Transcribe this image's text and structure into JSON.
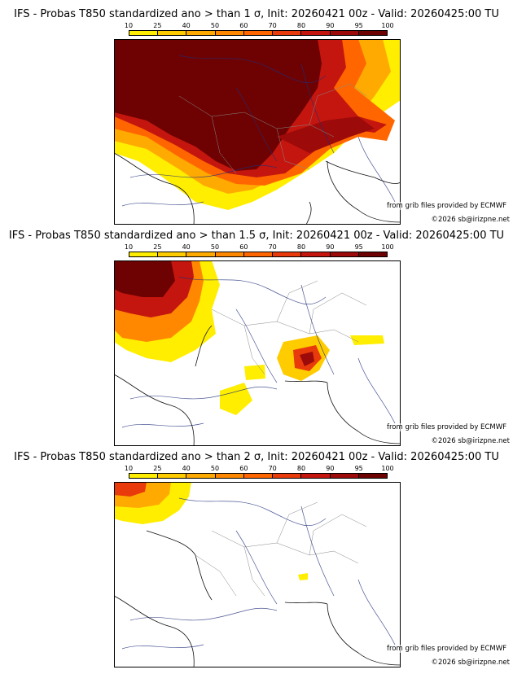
{
  "scale": {
    "ticks": [
      "10",
      "25",
      "40",
      "50",
      "60",
      "70",
      "80",
      "90",
      "95",
      "100"
    ],
    "colors": [
      "#ffee00",
      "#ffcc00",
      "#ffaa00",
      "#ff8800",
      "#ff6600",
      "#e83a0a",
      "#c4160e",
      "#9c0a0a",
      "#6e0202"
    ]
  },
  "credits": {
    "source": "from grib files provided by ECMWF",
    "copyright": "©2026 sb@irizpne.net"
  },
  "panels": [
    {
      "title": "IFS - Probas T850  standardized ano > than 1 σ, Init: 20260421 00z - Valid: 20260425:00 TU",
      "sigma": 1
    },
    {
      "title": "IFS - Probas T850  standardized ano > than 1.5 σ, Init: 20260421 00z - Valid: 20260425:00 TU",
      "sigma": 1.5
    },
    {
      "title": "IFS - Probas T850  standardized ano > than 2 σ, Init: 20260421 00z - Valid: 20260425:00 TU",
      "sigma": 2
    }
  ]
}
